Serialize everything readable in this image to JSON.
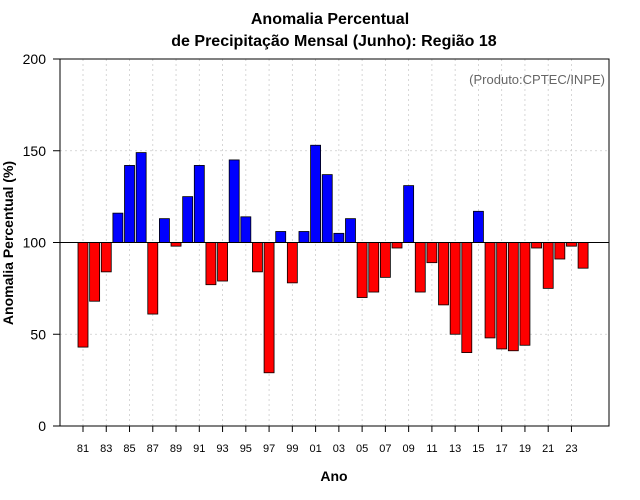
{
  "chart_data": {
    "type": "bar",
    "title_line1": "Anomalia Percentual",
    "title_line2": "de Precipitação Mensal (Junho): Região 18",
    "xlabel": "Ano",
    "ylabel": "Anomalia Percentual (%)",
    "source_note": "(Produto:CPTEC/INPE)",
    "ylim": [
      0,
      200
    ],
    "yticks": [
      0,
      50,
      100,
      150,
      200
    ],
    "baseline": 100,
    "grid": true,
    "colors": {
      "above": "#0000ff",
      "below": "#ff0000",
      "edge": "#000000"
    },
    "categories": [
      "81",
      "82",
      "83",
      "84",
      "85",
      "86",
      "87",
      "88",
      "89",
      "90",
      "91",
      "92",
      "93",
      "94",
      "95",
      "96",
      "97",
      "98",
      "99",
      "00",
      "01",
      "02",
      "03",
      "04",
      "05",
      "06",
      "07",
      "08",
      "09",
      "10",
      "11",
      "12",
      "13",
      "14",
      "15",
      "16",
      "17",
      "18",
      "19",
      "20",
      "21",
      "22",
      "23",
      "24"
    ],
    "xtick_labels": [
      "81",
      "83",
      "85",
      "87",
      "89",
      "91",
      "93",
      "95",
      "97",
      "99",
      "01",
      "03",
      "05",
      "07",
      "09",
      "11",
      "13",
      "15",
      "17",
      "19",
      "21",
      "23"
    ],
    "values": [
      43,
      68,
      84,
      116,
      142,
      149,
      61,
      113,
      98,
      125,
      142,
      77,
      79,
      145,
      114,
      84,
      29,
      106,
      78,
      106,
      153,
      137,
      105,
      113,
      70,
      73,
      81,
      97,
      131,
      73,
      89,
      66,
      50,
      40,
      117,
      48,
      42,
      41,
      44,
      97,
      75,
      91,
      98,
      86
    ]
  }
}
